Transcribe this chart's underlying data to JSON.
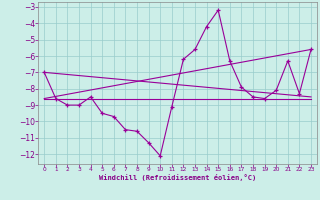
{
  "xlabel": "Windchill (Refroidissement éolien,°C)",
  "background_color": "#cceee8",
  "grid_color": "#99cccc",
  "line_color": "#990099",
  "xlim": [
    -0.5,
    23.5
  ],
  "ylim": [
    -12.6,
    -2.7
  ],
  "yticks": [
    -3,
    -4,
    -5,
    -6,
    -7,
    -8,
    -9,
    -10,
    -11,
    -12
  ],
  "xticks": [
    0,
    1,
    2,
    3,
    4,
    5,
    6,
    7,
    8,
    9,
    10,
    11,
    12,
    13,
    14,
    15,
    16,
    17,
    18,
    19,
    20,
    21,
    22,
    23
  ],
  "line1_x": [
    0,
    1,
    2,
    3,
    4,
    5,
    6,
    7,
    8,
    9,
    10,
    11,
    12,
    13,
    14,
    15,
    16,
    17,
    18,
    19,
    20,
    21,
    22,
    23
  ],
  "line1_y": [
    -7.0,
    -8.6,
    -9.0,
    -9.0,
    -8.5,
    -9.5,
    -9.7,
    -10.5,
    -10.6,
    -11.3,
    -12.1,
    -9.1,
    -6.2,
    -5.6,
    -4.2,
    -3.2,
    -6.3,
    -7.9,
    -8.5,
    -8.6,
    -8.1,
    -6.3,
    -8.3,
    -5.6
  ],
  "line2_x": [
    0,
    23
  ],
  "line2_y": [
    -8.6,
    -8.6
  ],
  "line3_x": [
    0,
    23
  ],
  "line3_y": [
    -8.6,
    -5.6
  ],
  "line4_x": [
    0,
    23
  ],
  "line4_y": [
    -7.0,
    -8.5
  ]
}
